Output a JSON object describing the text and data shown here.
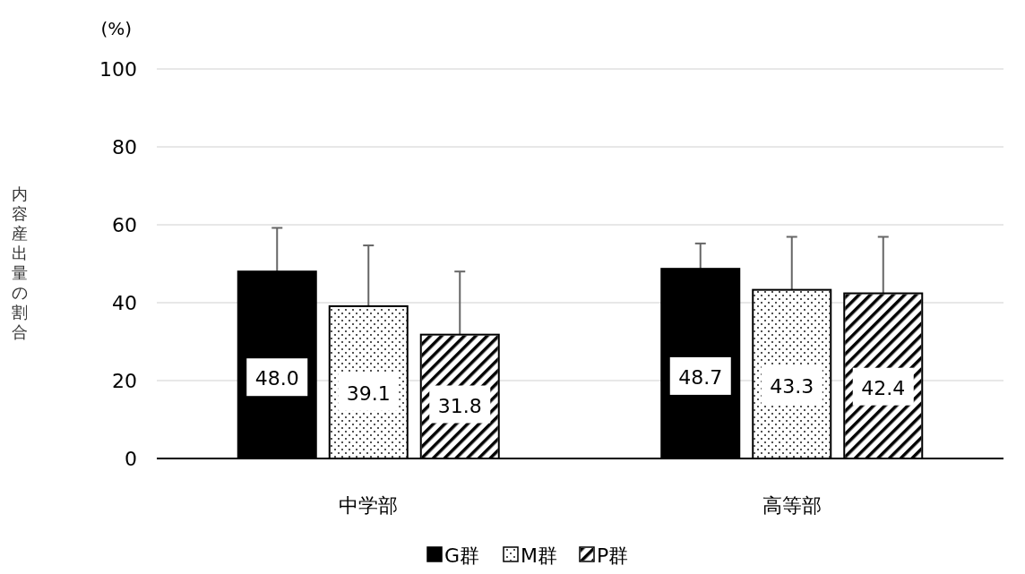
{
  "chart_data": {
    "type": "bar",
    "ylabel": "内容産出量の割合",
    "annotations": [
      "(%)"
    ],
    "categories": [
      "中学部",
      "高等部"
    ],
    "series": [
      {
        "name": "G群",
        "color": "#000000",
        "values": [
          48.0,
          48.7
        ],
        "value_labels": [
          "48.0",
          "48.7"
        ],
        "errors": [
          [
            48.0,
            59.2
          ],
          [
            48.7,
            55.2
          ]
        ]
      },
      {
        "name": "M群",
        "color": "#ffffff",
        "values": [
          39.1,
          43.3
        ],
        "value_labels": [
          "39.1",
          "43.3"
        ],
        "errors": [
          [
            39.1,
            54.7
          ],
          [
            43.3,
            56.9
          ]
        ]
      },
      {
        "name": "P群",
        "color": "#ffffff",
        "values": [
          31.8,
          42.4
        ],
        "value_labels": [
          "31.8",
          "42.4"
        ],
        "errors": [
          [
            31.8,
            48.0
          ],
          [
            42.4,
            56.9
          ]
        ]
      }
    ],
    "ylim": [
      0,
      100
    ],
    "yticks": [
      0,
      20,
      40,
      60,
      80,
      100
    ],
    "grid": "y",
    "legend": "bottom"
  }
}
